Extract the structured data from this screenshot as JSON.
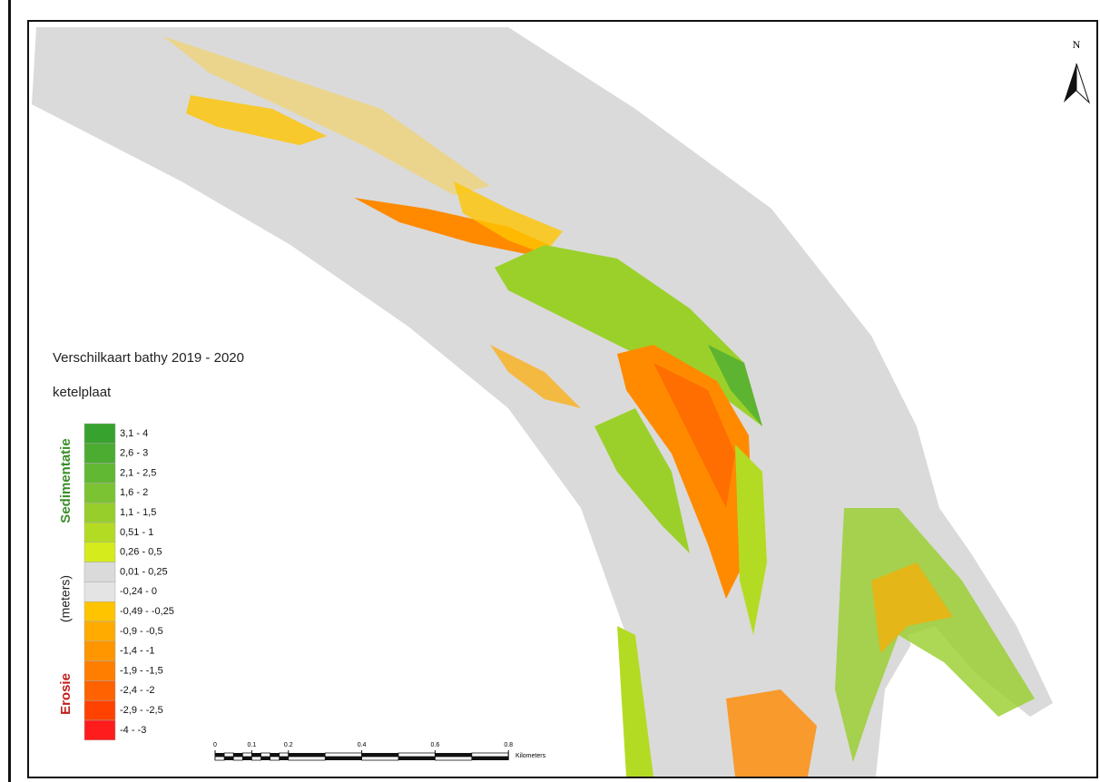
{
  "map": {
    "north_label": "N",
    "legend": {
      "title": "Verschilkaart bathy 2019 - 2020",
      "subtitle": "ketelplaat",
      "side_labels": {
        "top": "Sedimentatie",
        "middle": "(meters)",
        "bottom": "Erosie"
      },
      "items": [
        {
          "label": "3,1 - 4",
          "color": "#38a22e"
        },
        {
          "label": "2,6 - 3",
          "color": "#4cac32"
        },
        {
          "label": "2,1 - 2,5",
          "color": "#61b833"
        },
        {
          "label": "1,6 - 2",
          "color": "#7bc332"
        },
        {
          "label": "1,1 - 1,5",
          "color": "#97ce2b"
        },
        {
          "label": "0,51 - 1",
          "color": "#b4db24"
        },
        {
          "label": "0,26 - 0,5",
          "color": "#d5eb1c"
        },
        {
          "label": "0,01 - 0,25",
          "color": "#dadada"
        },
        {
          "label": "-0,24 - 0",
          "color": "#e4e4e4"
        },
        {
          "label": "-0,49 - -0,25",
          "color": "#ffc400"
        },
        {
          "label": "-0,9 - -0,5",
          "color": "#ffab00"
        },
        {
          "label": "-1,4 - -1",
          "color": "#ff9600"
        },
        {
          "label": "-1,9 - -1,5",
          "color": "#ff7e00"
        },
        {
          "label": "-2,4 - -2",
          "color": "#ff6200"
        },
        {
          "label": "-2,9 - -2,5",
          "color": "#ff4200"
        },
        {
          "label": "-4 - -3",
          "color": "#ff1c1c"
        }
      ]
    },
    "scale_bar": {
      "ticks": [
        0,
        0.1,
        0.2,
        0.4,
        0.6,
        0.8
      ],
      "unit": "Kilometers"
    }
  }
}
